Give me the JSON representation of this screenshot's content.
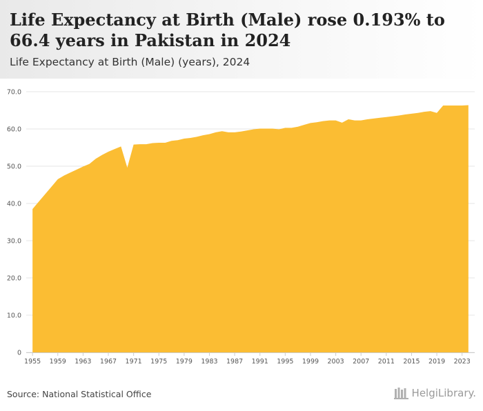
{
  "header": {
    "title": "Life Expectancy at Birth (Male) rose 0.193% to 66.4 years in Pakistan in 2024",
    "subtitle": "Life Expectancy at Birth (Male) (years), 2024"
  },
  "footer": {
    "source": "Source: National Statistical Office",
    "logo_text": "HelgiLibrary."
  },
  "colors": {
    "area": "#fbbd33",
    "grid": "#e6e6e6",
    "axis": "#cccccc"
  },
  "chart_data": {
    "type": "area",
    "title": "Life Expectancy at Birth (Male) (years), 2024",
    "xlabel": "",
    "ylabel": "",
    "ylim": [
      0,
      70
    ],
    "yticks": [
      0,
      10,
      20,
      30,
      40,
      50,
      60,
      70
    ],
    "ytick_labels": [
      "0",
      "10.0",
      "20.0",
      "30.0",
      "40.0",
      "50.0",
      "60.0",
      "70.0"
    ],
    "xlim": [
      1954,
      2025
    ],
    "xtick_labels": [
      "1955",
      "1959",
      "1963",
      "1967",
      "1971",
      "1975",
      "1979",
      "1983",
      "1987",
      "1991",
      "1995",
      "1999",
      "2003",
      "2007",
      "2011",
      "2015",
      "2019",
      "2023"
    ],
    "x": [
      1955,
      1956,
      1957,
      1958,
      1959,
      1960,
      1961,
      1962,
      1963,
      1964,
      1965,
      1966,
      1967,
      1968,
      1969,
      1970,
      1971,
      1972,
      1973,
      1974,
      1975,
      1976,
      1977,
      1978,
      1979,
      1980,
      1981,
      1982,
      1983,
      1984,
      1985,
      1986,
      1987,
      1988,
      1989,
      1990,
      1991,
      1992,
      1993,
      1994,
      1995,
      1996,
      1997,
      1998,
      1999,
      2000,
      2001,
      2002,
      2003,
      2004,
      2005,
      2006,
      2007,
      2008,
      2009,
      2010,
      2011,
      2012,
      2013,
      2014,
      2015,
      2016,
      2017,
      2018,
      2019,
      2020,
      2021,
      2022,
      2023,
      2024
    ],
    "series": [
      {
        "name": "Life Expectancy at Birth (Male)",
        "values": [
          38.5,
          40.5,
          42.5,
          44.5,
          46.5,
          47.5,
          48.3,
          49.1,
          49.9,
          50.6,
          52.0,
          53.0,
          53.9,
          54.6,
          55.3,
          49.6,
          55.8,
          55.9,
          55.9,
          56.2,
          56.3,
          56.3,
          56.8,
          57.0,
          57.4,
          57.6,
          57.9,
          58.3,
          58.6,
          59.1,
          59.4,
          59.1,
          59.1,
          59.3,
          59.6,
          59.9,
          60.1,
          60.1,
          60.1,
          59.9,
          60.3,
          60.3,
          60.6,
          61.1,
          61.6,
          61.8,
          62.1,
          62.3,
          62.3,
          61.7,
          62.6,
          62.3,
          62.3,
          62.6,
          62.8,
          63.0,
          63.2,
          63.4,
          63.6,
          63.9,
          64.1,
          64.3,
          64.6,
          64.8,
          64.3,
          66.3,
          66.3,
          66.3,
          66.3,
          66.4
        ]
      }
    ]
  }
}
